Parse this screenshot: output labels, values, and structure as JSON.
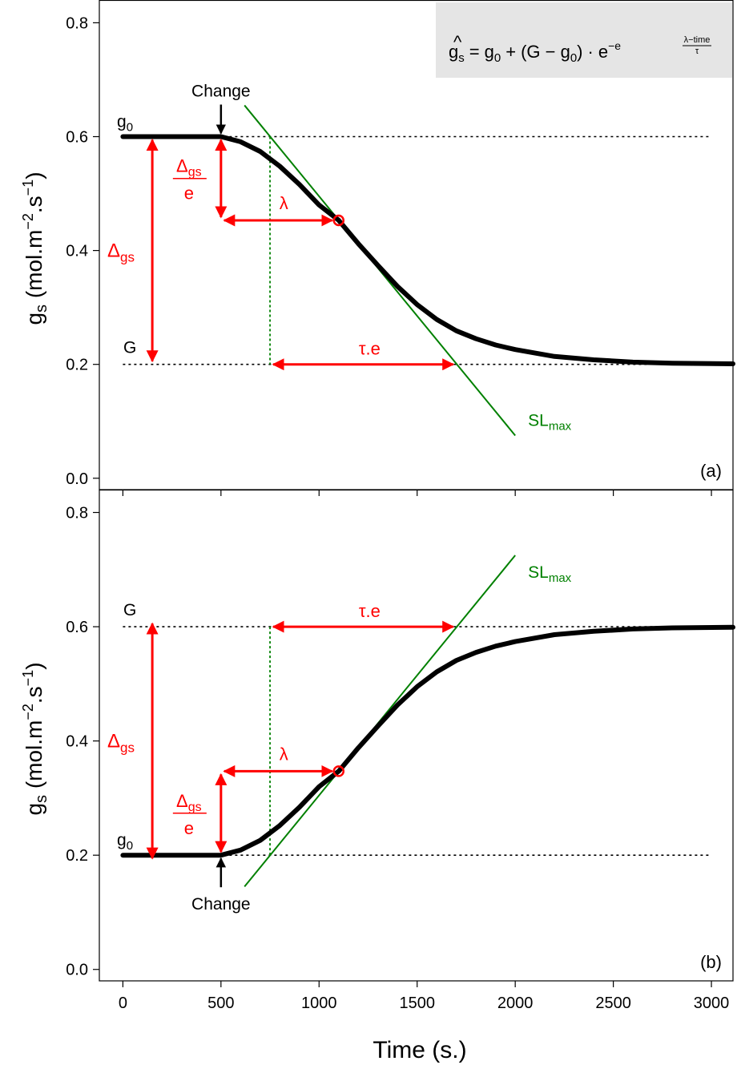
{
  "figure": {
    "xlabel": "Time (s.)",
    "ylabel_main": "g",
    "ylabel_sub": "s",
    "ylabel_unit_open": " (mol.m",
    "ylabel_unit_exp1": "−2",
    "ylabel_unit_mid": ".s",
    "ylabel_unit_exp2": "−1",
    "ylabel_unit_close": ")",
    "equation": {
      "lhs": "g",
      "lhs_hat": "^",
      "lhs_sub": "s",
      "eq": "=",
      "g0_main": "g",
      "g0_sub": "0",
      "plus": "+",
      "paren": "(G − g",
      "paren_sub": "0",
      "paren_close": ")",
      "dot": "·",
      "e1": "e",
      "e2": "−e",
      "frac_num": "λ−time",
      "frac_den": "τ"
    },
    "colors": {
      "curve": "#000000",
      "annotation": "#ff0000",
      "slope": "#008000",
      "guide": "#000000",
      "equation_box": "#e5e5e5"
    }
  },
  "chart_data": [
    {
      "type": "line",
      "panel_label": "(a)",
      "x_range": [
        -120,
        3110
      ],
      "ylim": [
        -0.02,
        0.84
      ],
      "x_ticks": [
        "0",
        "500",
        "1000",
        "1500",
        "2000",
        "2500",
        "3000"
      ],
      "x_tick_values": [
        0,
        500,
        1000,
        1500,
        2000,
        2500,
        3000
      ],
      "y_ticks": [
        "0.0",
        "0.2",
        "0.4",
        "0.6",
        "0.8"
      ],
      "y_tick_values": [
        0.0,
        0.2,
        0.4,
        0.6,
        0.8
      ],
      "model": {
        "g0": 0.6,
        "G": 0.2,
        "lambda": 600,
        "tau": 440,
        "change_time": 500
      },
      "series": [
        {
          "x": [
            0,
            500,
            600,
            700,
            800,
            900,
            1000,
            1100,
            1200,
            1300,
            1400,
            1500,
            1600,
            1700,
            1800,
            1900,
            2000,
            2200,
            2400,
            2600,
            2800,
            3110
          ],
          "y": [
            0.6,
            0.6,
            0.591,
            0.574,
            0.548,
            0.516,
            0.48,
            0.453,
            0.412,
            0.374,
            0.337,
            0.305,
            0.279,
            0.259,
            0.245,
            0.234,
            0.226,
            0.214,
            0.208,
            0.204,
            0.202,
            0.201
          ]
        }
      ],
      "reference_lines": {
        "g0_level": 0.6,
        "G_level": 0.2,
        "tangent_start_time": 750,
        "tangent_end_time": 1700
      },
      "inflection_point": {
        "time": 1100,
        "value": 0.453
      },
      "slope_line": {
        "x": [
          620,
          2000
        ],
        "y": [
          0.655,
          0.075
        ]
      },
      "labels": {
        "g0_main": "g",
        "g0_sub": "0",
        "G": "G",
        "change": "Change",
        "delta": "Δ",
        "delta_sub": "gs",
        "frac_den": "e",
        "lambda": "λ",
        "tau_e": "τ.e",
        "slmax_main": "SL",
        "slmax_sub": "max"
      }
    },
    {
      "type": "line",
      "panel_label": "(b)",
      "x_range": [
        -120,
        3110
      ],
      "ylim": [
        -0.02,
        0.84
      ],
      "x_ticks": [
        "0",
        "500",
        "1000",
        "1500",
        "2000",
        "2500",
        "3000"
      ],
      "x_tick_values": [
        0,
        500,
        1000,
        1500,
        2000,
        2500,
        3000
      ],
      "y_ticks": [
        "0.0",
        "0.2",
        "0.4",
        "0.6",
        "0.8"
      ],
      "y_tick_values": [
        0.0,
        0.2,
        0.4,
        0.6,
        0.8
      ],
      "model": {
        "g0": 0.2,
        "G": 0.6,
        "lambda": 600,
        "tau": 440,
        "change_time": 500
      },
      "series": [
        {
          "x": [
            0,
            500,
            600,
            700,
            800,
            900,
            1000,
            1100,
            1200,
            1300,
            1400,
            1500,
            1600,
            1700,
            1800,
            1900,
            2000,
            2200,
            2400,
            2600,
            2800,
            3110
          ],
          "y": [
            0.2,
            0.2,
            0.209,
            0.226,
            0.252,
            0.284,
            0.32,
            0.347,
            0.388,
            0.426,
            0.463,
            0.495,
            0.521,
            0.541,
            0.555,
            0.566,
            0.574,
            0.586,
            0.592,
            0.596,
            0.598,
            0.599
          ]
        }
      ],
      "reference_lines": {
        "g0_level": 0.2,
        "G_level": 0.6,
        "tangent_start_time": 750,
        "tangent_end_time": 1700
      },
      "inflection_point": {
        "time": 1100,
        "value": 0.347
      },
      "slope_line": {
        "x": [
          620,
          2000
        ],
        "y": [
          0.145,
          0.725
        ]
      },
      "labels": {
        "g0_main": "g",
        "g0_sub": "0",
        "G": "G",
        "change": "Change",
        "delta": "Δ",
        "delta_sub": "gs",
        "frac_den": "e",
        "lambda": "λ",
        "tau_e": "τ.e",
        "slmax_main": "SL",
        "slmax_sub": "max"
      }
    }
  ]
}
